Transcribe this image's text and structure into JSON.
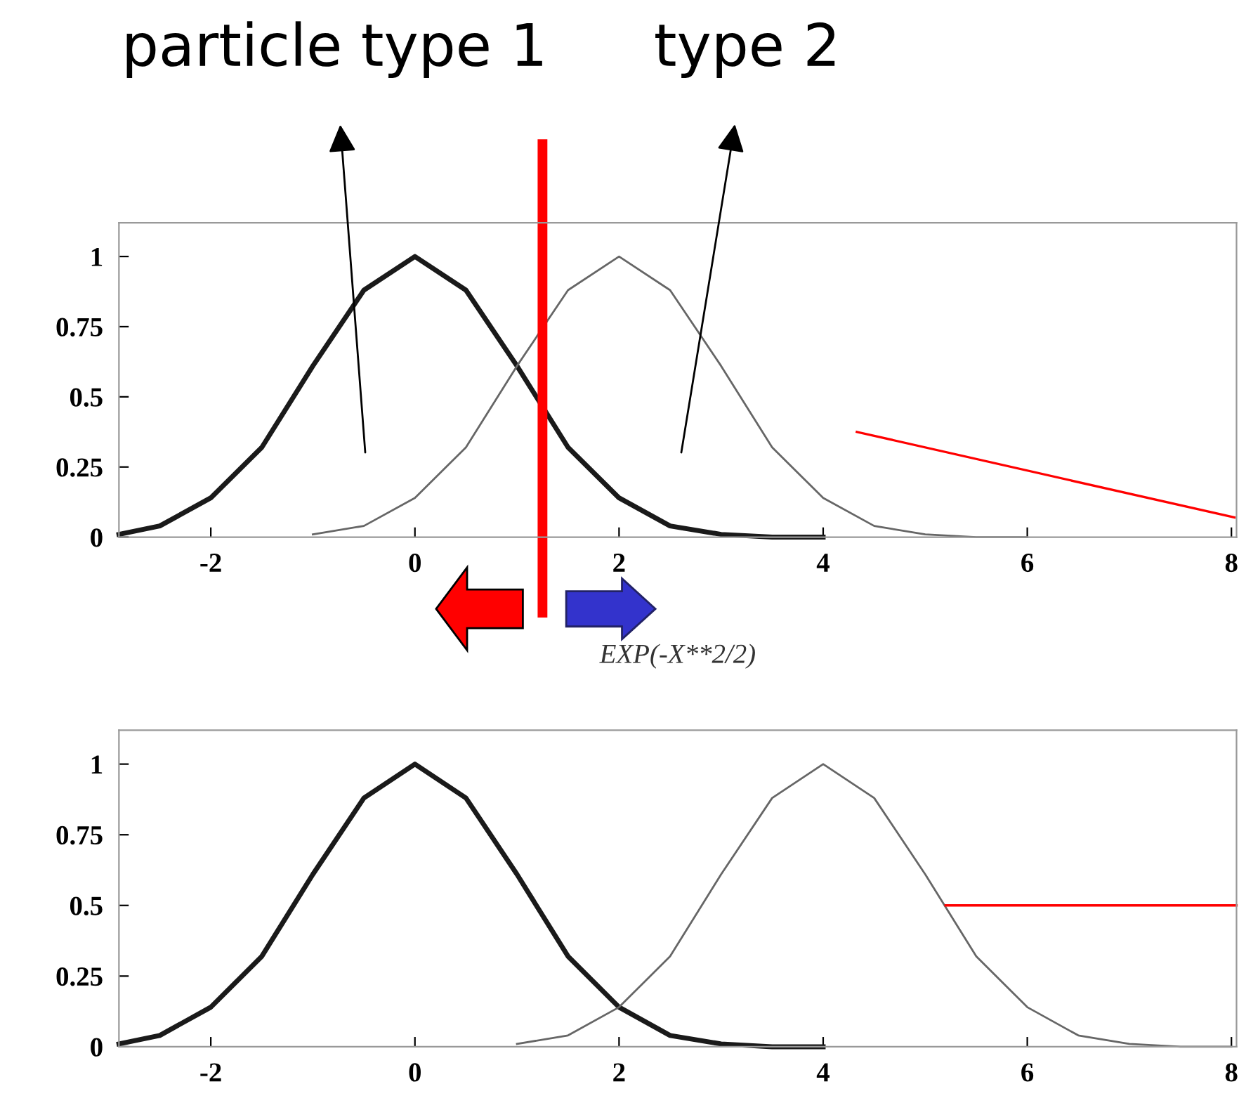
{
  "chart_data": [
    {
      "type": "line",
      "xlabel": "EXP(-X**2/2)",
      "xlim": [
        -2.9,
        8.05
      ],
      "ylim": [
        0,
        1.12
      ],
      "xticks": [
        -2,
        0,
        2,
        4,
        6,
        8
      ],
      "yticks": [
        0,
        0.25,
        0.5,
        0.75,
        1
      ],
      "grid": false,
      "legend": false,
      "marker": "none",
      "line_style": "solid",
      "series": [
        {
          "color": "#1a1a1a",
          "x": [
            -2.9,
            -2.5,
            -2,
            -1.5,
            -1,
            -0.5,
            0,
            0.5,
            1,
            1.5,
            2,
            2.5,
            3,
            3.5,
            4
          ],
          "values": [
            0.01,
            0.04,
            0.14,
            0.32,
            0.61,
            0.88,
            1,
            0.88,
            0.61,
            0.32,
            0.14,
            0.04,
            0.01,
            0,
            0
          ]
        },
        {
          "color": "#666666",
          "x": [
            -1,
            -0.5,
            0,
            0.5,
            1,
            1.5,
            2,
            2.5,
            3,
            3.5,
            4,
            4.5,
            5,
            5.5,
            6
          ],
          "values": [
            0.01,
            0.04,
            0.14,
            0.32,
            0.61,
            0.88,
            1,
            0.88,
            0.61,
            0.32,
            0.14,
            0.04,
            0.01,
            0,
            0
          ]
        },
        {
          "color": "#ff0000",
          "x": [
            4.33,
            8.03
          ],
          "values": [
            0.375,
            0.07
          ]
        }
      ],
      "ref_lines": [
        {
          "axis": "x",
          "value": 1.25,
          "color": "#ff0000"
        }
      ],
      "annotations": [
        "particle type 1",
        "type 2"
      ]
    },
    {
      "type": "line",
      "xlim": [
        -2.9,
        8.05
      ],
      "ylim": [
        0,
        1.12
      ],
      "xticks": [
        -2,
        0,
        2,
        4,
        6,
        8
      ],
      "yticks": [
        0,
        0.25,
        0.5,
        0.75,
        1
      ],
      "grid": false,
      "legend": false,
      "marker": "none",
      "line_style": "solid",
      "series": [
        {
          "color": "#1a1a1a",
          "x": [
            -2.9,
            -2.5,
            -2,
            -1.5,
            -1,
            -0.5,
            0,
            0.5,
            1,
            1.5,
            2,
            2.5,
            3,
            3.5,
            4
          ],
          "values": [
            0.01,
            0.04,
            0.14,
            0.32,
            0.61,
            0.88,
            1,
            0.88,
            0.61,
            0.32,
            0.14,
            0.04,
            0.01,
            0,
            0
          ]
        },
        {
          "color": "#666666",
          "x": [
            1,
            1.5,
            2,
            2.5,
            3,
            3.5,
            4,
            4.5,
            5,
            5.5,
            6,
            6.5,
            7,
            7.5,
            8
          ],
          "values": [
            0.01,
            0.04,
            0.14,
            0.32,
            0.61,
            0.88,
            1,
            0.88,
            0.61,
            0.32,
            0.14,
            0.04,
            0.01,
            0,
            0
          ]
        },
        {
          "color": "#ff0000",
          "x": [
            5.2,
            8.05
          ],
          "values": [
            0.5,
            0.5
          ]
        }
      ]
    }
  ]
}
